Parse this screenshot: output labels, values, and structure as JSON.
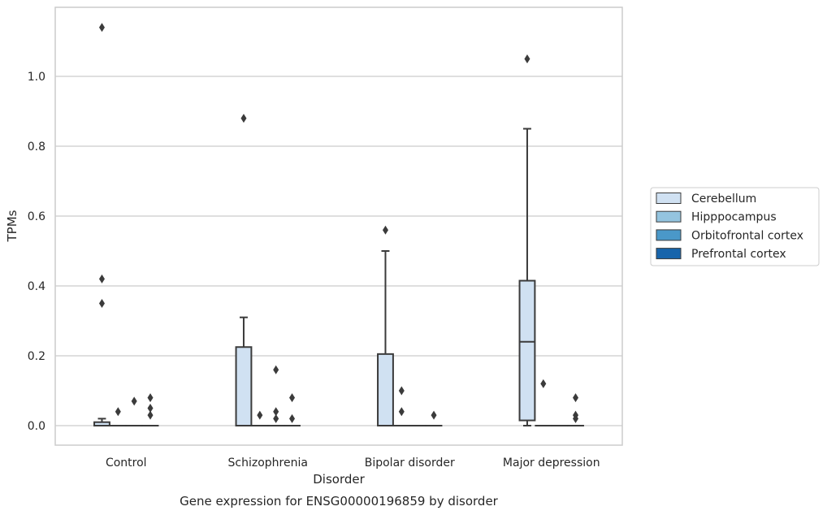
{
  "chart_data": {
    "type": "box",
    "title": "",
    "xlabel": "Disorder",
    "ylabel": "TPMs",
    "caption": "Gene expression for ENSG00000196859 by disorder",
    "categories": [
      "Control",
      "Schizophrenia",
      "Bipolar disorder",
      "Major depression"
    ],
    "ylim": [
      -0.055,
      1.2
    ],
    "yticks": [
      0.0,
      0.2,
      0.4,
      0.6,
      0.8,
      1.0
    ],
    "ytick_labels": [
      "0.0",
      "0.2",
      "0.4",
      "0.6",
      "0.8",
      "1.0"
    ],
    "grid": true,
    "legend_position": "right",
    "series": [
      {
        "name": "Cerebellum",
        "color": "#d0e1f2",
        "boxes": [
          {
            "q1": 0.0,
            "median": 0.0,
            "q3": 0.01,
            "whisker_low": 0.0,
            "whisker_high": 0.02,
            "outliers": [
              1.14,
              0.42,
              0.35
            ]
          },
          {
            "q1": 0.0,
            "median": 0.0,
            "q3": 0.225,
            "whisker_low": 0.0,
            "whisker_high": 0.31,
            "outliers": [
              0.88
            ]
          },
          {
            "q1": 0.0,
            "median": 0.0,
            "q3": 0.205,
            "whisker_low": 0.0,
            "whisker_high": 0.5,
            "outliers": [
              0.56
            ]
          },
          {
            "q1": 0.015,
            "median": 0.24,
            "q3": 0.415,
            "whisker_low": 0.0,
            "whisker_high": 0.85,
            "outliers": [
              1.05
            ]
          }
        ]
      },
      {
        "name": "Hipppocampus",
        "color": "#94c4df",
        "boxes": [
          {
            "q1": 0.0,
            "median": 0.0,
            "q3": 0.0,
            "whisker_low": 0.0,
            "whisker_high": 0.0,
            "outliers": [
              0.04
            ]
          },
          {
            "q1": 0.0,
            "median": 0.0,
            "q3": 0.0,
            "whisker_low": 0.0,
            "whisker_high": 0.0,
            "outliers": [
              0.03
            ]
          },
          {
            "q1": 0.0,
            "median": 0.0,
            "q3": 0.0,
            "whisker_low": 0.0,
            "whisker_high": 0.0,
            "outliers": [
              0.1,
              0.04
            ]
          },
          {
            "q1": 0.0,
            "median": 0.0,
            "q3": 0.0,
            "whisker_low": 0.0,
            "whisker_high": 0.0,
            "outliers": [
              0.12
            ]
          }
        ]
      },
      {
        "name": "Orbitofrontal cortex",
        "color": "#4a98c9",
        "boxes": [
          {
            "q1": 0.0,
            "median": 0.0,
            "q3": 0.0,
            "whisker_low": 0.0,
            "whisker_high": 0.0,
            "outliers": [
              0.07
            ]
          },
          {
            "q1": 0.0,
            "median": 0.0,
            "q3": 0.0,
            "whisker_low": 0.0,
            "whisker_high": 0.0,
            "outliers": [
              0.16,
              0.04,
              0.02
            ]
          },
          {
            "q1": 0.0,
            "median": 0.0,
            "q3": 0.0,
            "whisker_low": 0.0,
            "whisker_high": 0.0,
            "outliers": []
          },
          {
            "q1": 0.0,
            "median": 0.0,
            "q3": 0.0,
            "whisker_low": 0.0,
            "whisker_high": 0.0,
            "outliers": []
          }
        ]
      },
      {
        "name": "Prefrontal cortex",
        "color": "#1764ab",
        "boxes": [
          {
            "q1": 0.0,
            "median": 0.0,
            "q3": 0.0,
            "whisker_low": 0.0,
            "whisker_high": 0.0,
            "outliers": [
              0.08,
              0.05,
              0.03
            ]
          },
          {
            "q1": 0.0,
            "median": 0.0,
            "q3": 0.0,
            "whisker_low": 0.0,
            "whisker_high": 0.0,
            "outliers": [
              0.08,
              0.02
            ]
          },
          {
            "q1": 0.0,
            "median": 0.0,
            "q3": 0.0,
            "whisker_low": 0.0,
            "whisker_high": 0.0,
            "outliers": [
              0.03
            ]
          },
          {
            "q1": 0.0,
            "median": 0.0,
            "q3": 0.0,
            "whisker_low": 0.0,
            "whisker_high": 0.0,
            "outliers": [
              0.08,
              0.03,
              0.02
            ]
          }
        ]
      }
    ]
  }
}
